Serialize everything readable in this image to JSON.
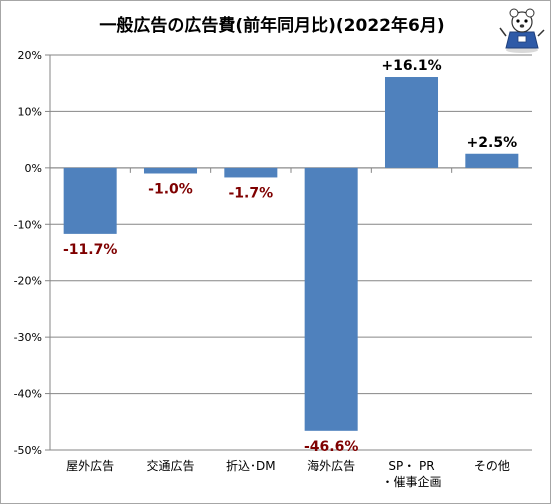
{
  "chart_data": {
    "type": "bar",
    "title": "一般広告の広告費(前年同月比)(2022年6月)",
    "categories": [
      [
        "屋外広告"
      ],
      [
        "交通広告"
      ],
      [
        "折込･DM"
      ],
      [
        "海外広告"
      ],
      [
        "SP・ PR",
        "・催事企画"
      ],
      [
        "その他"
      ]
    ],
    "values": [
      -11.7,
      -1.0,
      -1.7,
      -46.6,
      16.1,
      2.5
    ],
    "value_labels": [
      "-11.7%",
      "-1.0%",
      "-1.7%",
      "-46.6%",
      "+16.1%",
      "+2.5%"
    ],
    "ylim": [
      -50,
      20
    ],
    "yticks": [
      20,
      10,
      0,
      -10,
      -20,
      -30,
      -40,
      -50
    ],
    "ytick_labels": [
      "20%",
      "10%",
      "0%",
      "-10%",
      "-20%",
      "-30%",
      "-40%",
      "-50%"
    ],
    "xlabel": "",
    "ylabel": "",
    "grid": true,
    "colors": {
      "bar": "#4f81bd",
      "negative_label": "#7f0000",
      "positive_label": "#000000",
      "grid": "#868686",
      "axis": "#868686"
    },
    "mascot_icon": "mascot-character-icon"
  }
}
